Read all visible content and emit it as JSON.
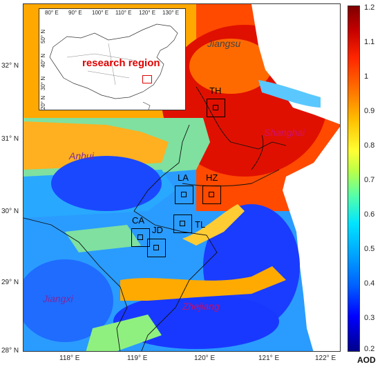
{
  "map": {
    "lat_labels": [
      "32° N",
      "31° N",
      "30° N",
      "29° N",
      "28° N"
    ],
    "lon_labels": [
      "118° E",
      "119° E",
      "120° E",
      "121° E",
      "122° E"
    ]
  },
  "colorbar": {
    "title": "AOD",
    "ticks": [
      "1.2",
      "1.1",
      "1",
      "0.9",
      "0.8",
      "0.7",
      "0.6",
      "0.5",
      "0.4",
      "0.3",
      "0.2"
    ]
  },
  "inset": {
    "label": "research region",
    "top_ticks": [
      "80° E",
      "90° E",
      "100° E",
      "110° E",
      "120° E",
      "130° E"
    ],
    "left_ticks": [
      "50° N",
      "40° N",
      "30° N",
      "20° N"
    ]
  },
  "provinces": {
    "jiangsu": "Jiangsu",
    "shanghai": "Shanghai",
    "anhui": "Anhui",
    "jiangxi": "Jiangxi",
    "zhejiang": "Zhejiang"
  },
  "sites": {
    "th": "TH",
    "la": "LA",
    "hz": "HZ",
    "ca": "CA",
    "jd": "JD",
    "tl": "TL"
  }
}
